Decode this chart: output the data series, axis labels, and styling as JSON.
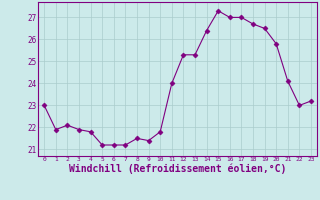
{
  "x": [
    0,
    1,
    2,
    3,
    4,
    5,
    6,
    7,
    8,
    9,
    10,
    11,
    12,
    13,
    14,
    15,
    16,
    17,
    18,
    19,
    20,
    21,
    22,
    23
  ],
  "y": [
    23.0,
    21.9,
    22.1,
    21.9,
    21.8,
    21.2,
    21.2,
    21.2,
    21.5,
    21.4,
    21.8,
    24.0,
    25.3,
    25.3,
    26.4,
    27.3,
    27.0,
    27.0,
    26.7,
    26.5,
    25.8,
    24.1,
    23.0,
    23.2
  ],
  "line_color": "#800080",
  "marker": "D",
  "marker_size": 2.5,
  "bg_color": "#cceaea",
  "grid_color": "#aacccc",
  "xlabel": "Windchill (Refroidissement éolien,°C)",
  "xlabel_fontsize": 7,
  "tick_color": "#800080",
  "ylim": [
    20.7,
    27.7
  ],
  "xlim": [
    -0.5,
    23.5
  ],
  "yticks": [
    21,
    22,
    23,
    24,
    25,
    26,
    27
  ],
  "xticks": [
    0,
    1,
    2,
    3,
    4,
    5,
    6,
    7,
    8,
    9,
    10,
    11,
    12,
    13,
    14,
    15,
    16,
    17,
    18,
    19,
    20,
    21,
    22,
    23
  ]
}
